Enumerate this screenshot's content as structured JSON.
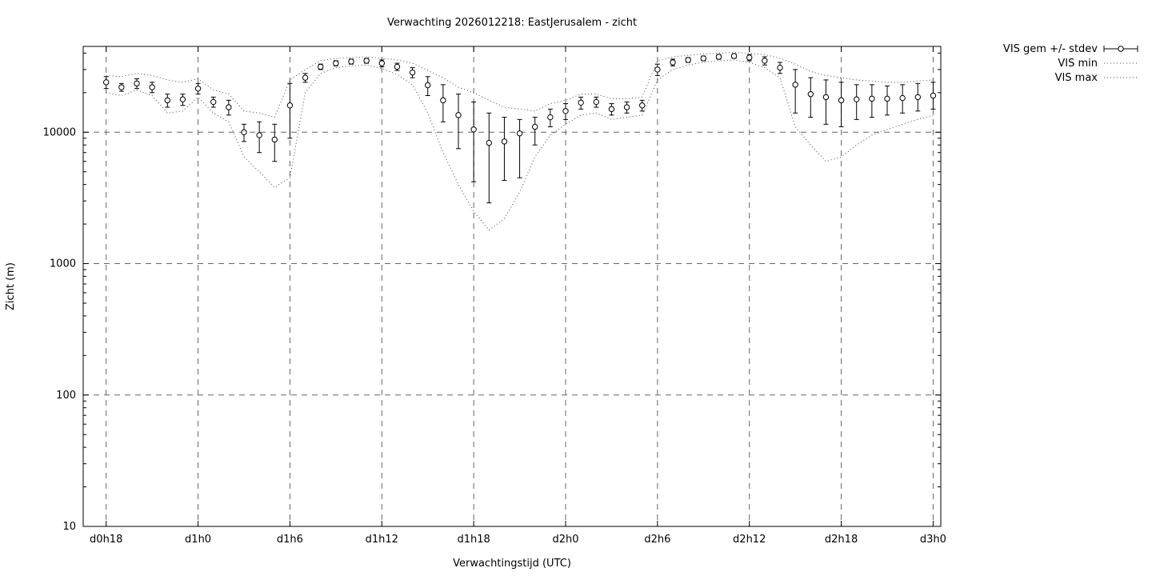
{
  "chart_data": {
    "type": "line",
    "title": "Verwachting 2026012218: EastJerusalem - zicht",
    "xlabel": "Verwachtingstijd (UTC)",
    "ylabel": "Zicht (m)",
    "y_scale": "log",
    "ylim": [
      10,
      45000
    ],
    "xlim": [
      16.5,
      72.5
    ],
    "yticks": [
      10,
      100,
      1000,
      10000
    ],
    "xticks": [
      {
        "hour": 18,
        "label": "d0h18"
      },
      {
        "hour": 24,
        "label": "d1h0"
      },
      {
        "hour": 30,
        "label": "d1h6"
      },
      {
        "hour": 36,
        "label": "d1h12"
      },
      {
        "hour": 42,
        "label": "d1h18"
      },
      {
        "hour": 48,
        "label": "d2h0"
      },
      {
        "hour": 54,
        "label": "d2h6"
      },
      {
        "hour": 60,
        "label": "d2h12"
      },
      {
        "hour": 66,
        "label": "d2h18"
      },
      {
        "hour": 72,
        "label": "d3h0"
      }
    ],
    "legend": [
      {
        "label": "VIS gem +/- stdev",
        "style": "errorbar"
      },
      {
        "label": "VIS min",
        "style": "dotted"
      },
      {
        "label": "VIS max",
        "style": "dotted"
      }
    ],
    "hours": [
      18,
      19,
      20,
      21,
      22,
      23,
      24,
      25,
      26,
      27,
      28,
      29,
      30,
      31,
      32,
      33,
      34,
      35,
      36,
      37,
      38,
      39,
      40,
      41,
      42,
      43,
      44,
      45,
      46,
      47,
      48,
      49,
      50,
      51,
      52,
      53,
      54,
      55,
      56,
      57,
      58,
      59,
      60,
      61,
      62,
      63,
      64,
      65,
      66,
      67,
      68,
      69,
      70,
      71,
      72
    ],
    "mean": [
      24000,
      22000,
      23500,
      22000,
      17500,
      17800,
      21500,
      17000,
      15500,
      10000,
      9500,
      8800,
      16000,
      26000,
      31500,
      33500,
      34500,
      35000,
      33500,
      31500,
      28500,
      22800,
      17500,
      13500,
      10500,
      8300,
      8500,
      9800,
      11000,
      13000,
      14500,
      16800,
      17000,
      15000,
      15500,
      16000,
      30000,
      34000,
      35500,
      36500,
      37500,
      38000,
      37000,
      35000,
      31000,
      23000,
      19500,
      18500,
      17500,
      17800,
      18000,
      18000,
      18200,
      18500,
      19000
    ],
    "lo": [
      21500,
      20500,
      21500,
      20000,
      15500,
      16000,
      19500,
      15500,
      13500,
      8500,
      7000,
      6000,
      9000,
      24000,
      30000,
      32000,
      33000,
      33500,
      31500,
      29500,
      26000,
      19000,
      12000,
      7500,
      4200,
      2900,
      4300,
      4500,
      8000,
      11000,
      12500,
      15000,
      15500,
      13500,
      14000,
      14500,
      27000,
      32000,
      34000,
      35000,
      36000,
      36500,
      35000,
      32500,
      28000,
      14000,
      13000,
      11500,
      11000,
      12500,
      13000,
      13500,
      14000,
      14500,
      15000
    ],
    "hi": [
      26500,
      23500,
      25500,
      24000,
      19500,
      19500,
      23500,
      18500,
      17500,
      11500,
      12000,
      11500,
      23500,
      28000,
      33000,
      35000,
      36000,
      36500,
      35500,
      33500,
      31000,
      26500,
      23000,
      19500,
      17000,
      14000,
      13000,
      12500,
      13000,
      15000,
      16500,
      18500,
      18500,
      16500,
      17000,
      17500,
      33000,
      36000,
      37000,
      38000,
      39000,
      39500,
      39000,
      37500,
      34000,
      30000,
      26000,
      25000,
      24000,
      23000,
      23000,
      22500,
      23000,
      23500,
      24000
    ],
    "min": [
      20000,
      19000,
      21000,
      19000,
      14000,
      14500,
      18500,
      14000,
      12000,
      6500,
      5000,
      3800,
      4500,
      20000,
      28000,
      31000,
      32000,
      32500,
      30500,
      27500,
      23000,
      14000,
      7000,
      4000,
      2500,
      1800,
      2200,
      3500,
      6500,
      9500,
      11500,
      13500,
      14000,
      12500,
      13000,
      13500,
      25000,
      30000,
      32500,
      34000,
      35000,
      35500,
      34000,
      31000,
      26000,
      11000,
      8000,
      6000,
      6500,
      8000,
      9500,
      10500,
      11500,
      12500,
      13500
    ],
    "max": [
      27000,
      26500,
      28000,
      27000,
      25000,
      24000,
      25500,
      21000,
      19500,
      14500,
      14000,
      13000,
      25000,
      30000,
      35000,
      36500,
      37000,
      37500,
      36500,
      35500,
      33500,
      29500,
      26000,
      22000,
      20000,
      17500,
      15500,
      15000,
      14500,
      16500,
      17500,
      19500,
      19500,
      18000,
      18000,
      18500,
      35000,
      37500,
      38500,
      39500,
      40000,
      40500,
      40000,
      39000,
      36500,
      33000,
      29000,
      27000,
      26000,
      25000,
      24500,
      24000,
      24000,
      24500,
      25000
    ]
  }
}
